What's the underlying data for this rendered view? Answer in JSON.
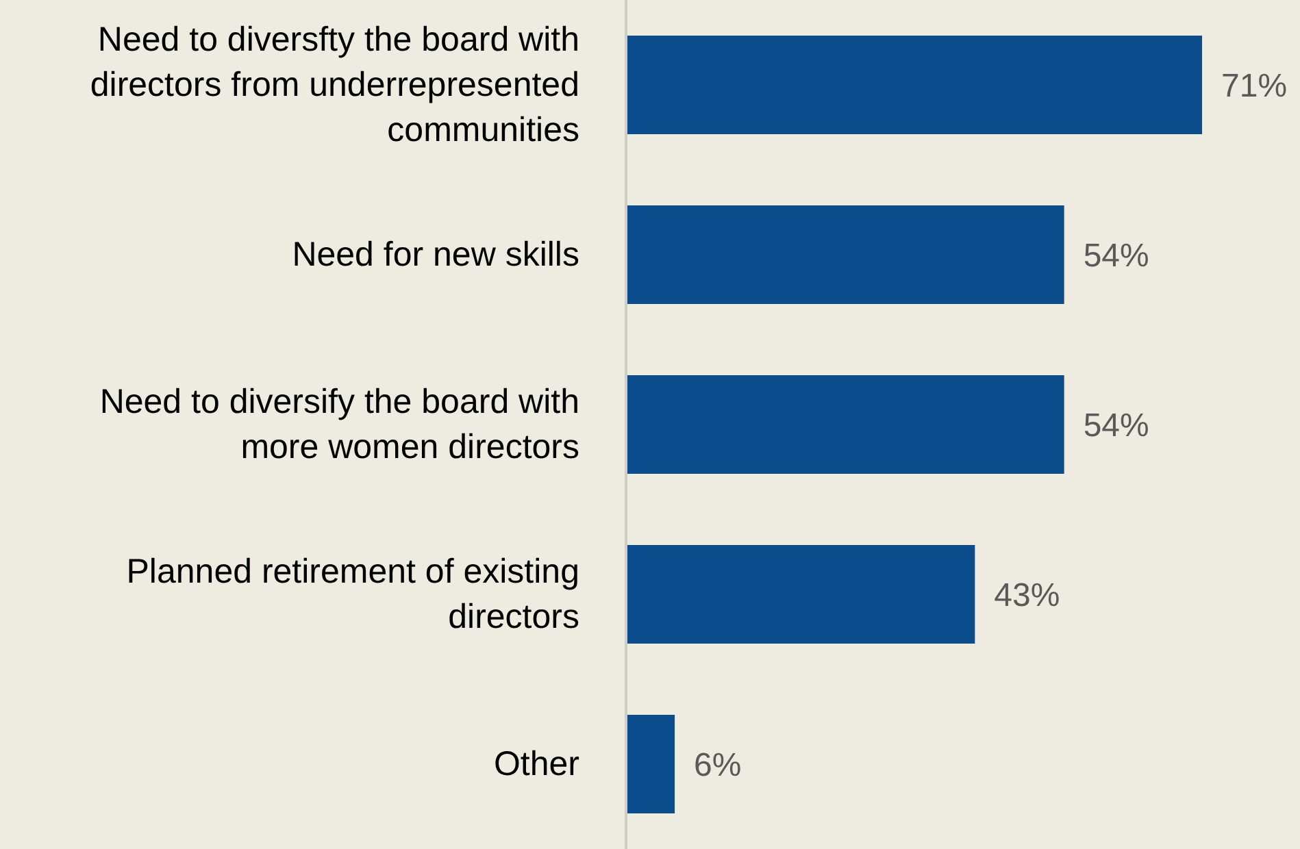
{
  "chart_data": {
    "type": "bar",
    "orientation": "horizontal",
    "categories": [
      "Need to diversfty the board with directors from underrepresented communities",
      "Need for new skills",
      "Need to diversify the board with more women directors",
      "Planned retirement of existing directors",
      "Other"
    ],
    "values": [
      71,
      54,
      54,
      43,
      6
    ],
    "value_labels": [
      "71%",
      "54%",
      "54%",
      "43%",
      "6%"
    ],
    "color": "#0a4c8c"
  }
}
